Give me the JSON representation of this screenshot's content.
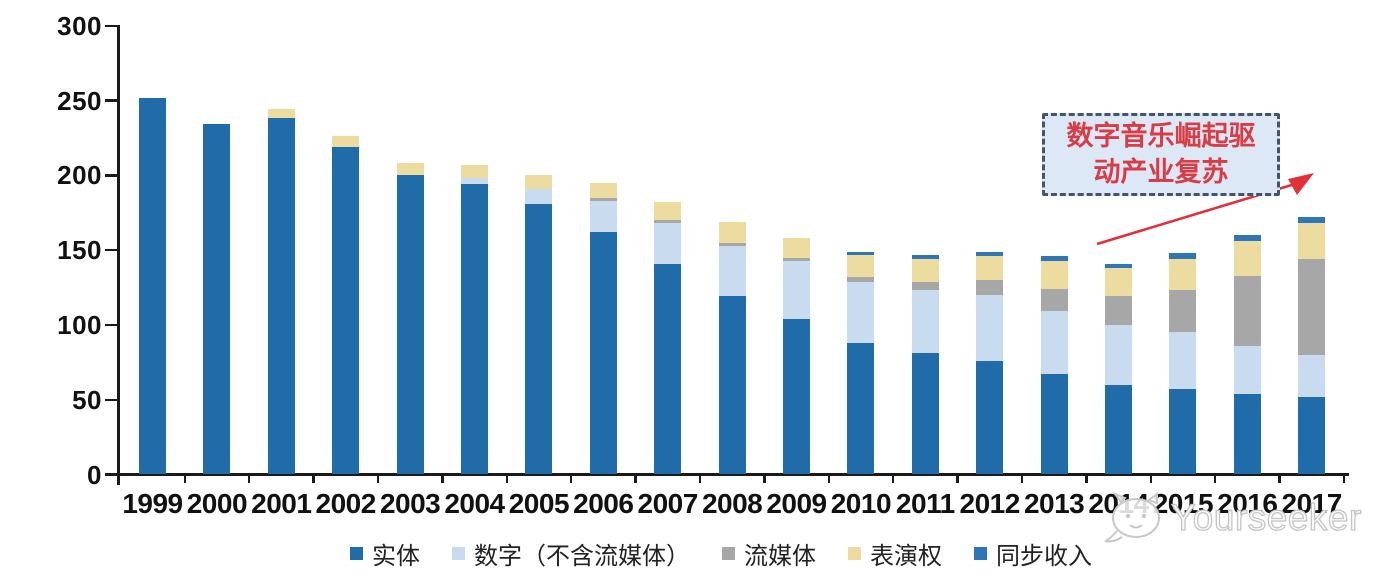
{
  "chart_data": {
    "type": "bar",
    "stacked": true,
    "title": "",
    "xlabel": "",
    "ylabel": "",
    "ylim": [
      0,
      300
    ],
    "ytick_step": 50,
    "yticks": [
      "0",
      "50",
      "100",
      "150",
      "200",
      "250",
      "300"
    ],
    "grid": false,
    "legend_position": "bottom",
    "categories": [
      "1999",
      "2000",
      "2001",
      "2002",
      "2003",
      "2004",
      "2005",
      "2006",
      "2007",
      "2008",
      "2009",
      "2010",
      "2011",
      "2012",
      "2013",
      "2014",
      "2015",
      "2016",
      "2017"
    ],
    "series": [
      {
        "name": "实体",
        "color": "#1f6ca9",
        "values": [
          252,
          234,
          238,
          219,
          200,
          194,
          181,
          162,
          141,
          119,
          104,
          88,
          81,
          76,
          67,
          60,
          57,
          54,
          52
        ]
      },
      {
        "name": "数字（不含流媒体）",
        "color": "#c9dcef",
        "values": [
          0,
          0,
          0,
          0,
          0,
          4,
          10,
          21,
          27,
          34,
          39,
          41,
          42,
          44,
          42,
          40,
          38,
          32,
          28
        ]
      },
      {
        "name": "流媒体",
        "color": "#a7a7a7",
        "values": [
          0,
          0,
          0,
          0,
          0,
          0,
          0,
          2,
          2,
          2,
          2,
          3,
          6,
          10,
          15,
          19,
          28,
          47,
          64
        ]
      },
      {
        "name": "表演权",
        "color": "#ecdca0",
        "values": [
          0,
          0,
          6,
          7,
          8,
          9,
          9,
          10,
          12,
          14,
          13,
          15,
          15,
          16,
          19,
          19,
          21,
          23,
          24
        ]
      },
      {
        "name": "同步收入",
        "color": "#2e76b5",
        "values": [
          0,
          0,
          0,
          0,
          0,
          0,
          0,
          0,
          0,
          0,
          0,
          2,
          3,
          3,
          3,
          3,
          4,
          4,
          4
        ]
      }
    ]
  },
  "annotation": {
    "line1": "数字音乐崛起驱",
    "line2": "动产业复苏",
    "text_color": "#da3b44",
    "box_fill": "#dce8f5",
    "box_border": "#44546a",
    "arrow_color": "#e0303a"
  },
  "watermark": {
    "brand": "Yourseeker",
    "logo": "speech-bubble-cat-icon",
    "color": "#c6c6c6"
  }
}
